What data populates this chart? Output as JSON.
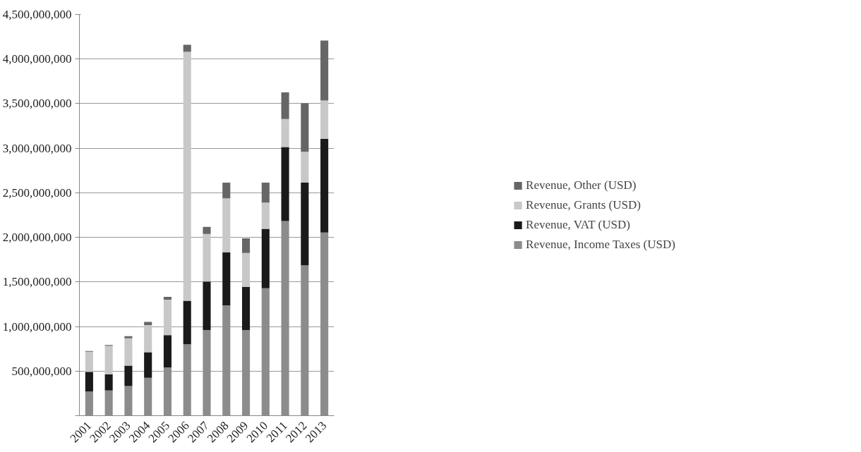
{
  "chart_data": {
    "type": "bar",
    "stacked": true,
    "categories": [
      "2001",
      "2002",
      "2003",
      "2004",
      "2005",
      "2006",
      "2007",
      "2008",
      "2009",
      "2010",
      "2011",
      "2012",
      "2013"
    ],
    "series": [
      {
        "name": "Revenue, Income Taxes (USD)",
        "color": "#8c8c8c",
        "values": [
          270000000,
          283000000,
          333000000,
          425000000,
          542000000,
          800000000,
          960000000,
          1238000000,
          960000000,
          1430000000,
          2182000000,
          1686000000,
          2054000000
        ]
      },
      {
        "name": "Revenue, VAT (USD)",
        "color": "#1a1a1a",
        "values": [
          222000000,
          181000000,
          228000000,
          286000000,
          361000000,
          490000000,
          544000000,
          592000000,
          486000000,
          666000000,
          832000000,
          928000000,
          1050000000
        ]
      },
      {
        "name": "Revenue, Grants (USD)",
        "color": "#c8c8c8",
        "values": [
          225000000,
          319000000,
          306000000,
          306000000,
          397000000,
          2790000000,
          534000000,
          608000000,
          378000000,
          294000000,
          314000000,
          346000000,
          432000000
        ]
      },
      {
        "name": "Revenue, Other (USD)",
        "color": "#666666",
        "values": [
          8000000,
          10000000,
          25000000,
          35000000,
          33000000,
          80000000,
          80000000,
          176000000,
          166000000,
          224000000,
          298000000,
          544000000,
          672000000
        ]
      }
    ],
    "ylim": [
      0,
      4500000000
    ],
    "yticks": [
      {
        "value": 0,
        "label": null
      },
      {
        "value": 500000000,
        "label": "500,000,000"
      },
      {
        "value": 1000000000,
        "label": "1,000,000,000"
      },
      {
        "value": 1500000000,
        "label": "1,500,000,000"
      },
      {
        "value": 2000000000,
        "label": "2,000,000,000"
      },
      {
        "value": 2500000000,
        "label": "2,500,000,000"
      },
      {
        "value": 3000000000,
        "label": "3,000,000,000"
      },
      {
        "value": 3500000000,
        "label": "3,500,000,000"
      },
      {
        "value": 4000000000,
        "label": "4,000,000,000"
      },
      {
        "value": 4500000000,
        "label": "4,500,000,000"
      }
    ],
    "grid": "y",
    "legend": "right"
  }
}
